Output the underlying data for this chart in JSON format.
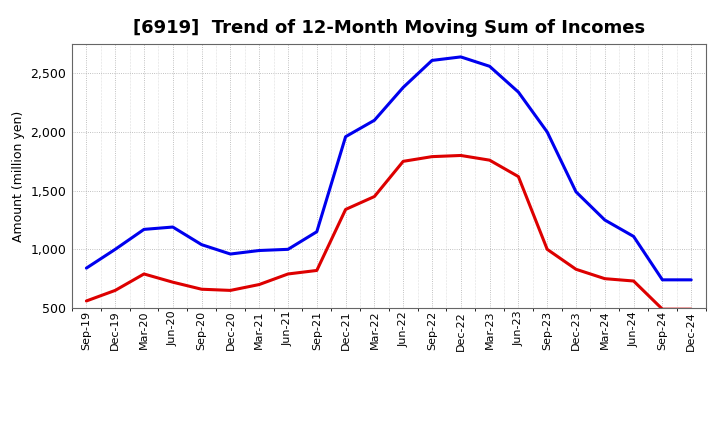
{
  "title": "[6919]  Trend of 12-Month Moving Sum of Incomes",
  "ylabel": "Amount (million yen)",
  "ylim": [
    500,
    2750
  ],
  "yticks": [
    500,
    1000,
    1500,
    2000,
    2500
  ],
  "background_color": "#ffffff",
  "plot_bg_color": "#ffffff",
  "grid_color": "#999999",
  "labels": [
    "Sep-19",
    "Dec-19",
    "Mar-20",
    "Jun-20",
    "Sep-20",
    "Dec-20",
    "Mar-21",
    "Jun-21",
    "Sep-21",
    "Dec-21",
    "Mar-22",
    "Jun-22",
    "Sep-22",
    "Dec-22",
    "Mar-23",
    "Jun-23",
    "Sep-23",
    "Dec-23",
    "Mar-24",
    "Jun-24",
    "Sep-24",
    "Dec-24"
  ],
  "ordinary_income": [
    840,
    1000,
    1170,
    1190,
    1040,
    960,
    990,
    1000,
    1150,
    1960,
    2100,
    2380,
    2610,
    2640,
    2560,
    2340,
    2000,
    1490,
    1250,
    1110,
    740,
    740
  ],
  "net_income": [
    560,
    650,
    790,
    720,
    660,
    650,
    700,
    790,
    820,
    1340,
    1450,
    1750,
    1790,
    1800,
    1760,
    1620,
    1000,
    830,
    750,
    730,
    490,
    490
  ],
  "ordinary_color": "#0000ee",
  "net_color": "#dd0000",
  "line_width": 2.2,
  "title_fontsize": 13,
  "label_fontsize": 8,
  "ylabel_fontsize": 9,
  "ytick_fontsize": 9,
  "legend_fontsize": 9
}
